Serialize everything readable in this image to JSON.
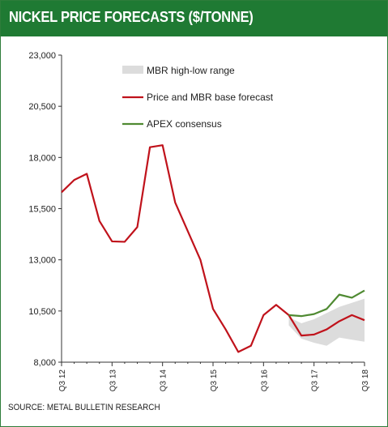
{
  "header": {
    "title": "NICKEL PRICE FORECASTS ($/TONNE)"
  },
  "source": "SOURCE: METAL BULLETIN RESEARCH",
  "colors": {
    "header_bg": "#1f7a33",
    "price": "#c0121b",
    "apex": "#4f8a32",
    "range": "#dcdcdc",
    "axis": "#333333"
  },
  "chart_data": {
    "type": "line",
    "title": "NICKEL PRICE FORECASTS ($/TONNE)",
    "ylim": [
      8000,
      23000
    ],
    "y_ticks": [
      "8,000",
      "10,500",
      "13,000",
      "15,500",
      "18,000",
      "20,500",
      "23,000"
    ],
    "x_ticks": [
      "Q3 12",
      "Q3 13",
      "Q3 14",
      "Q3 15",
      "Q3 16",
      "Q3 17",
      "Q3 18"
    ],
    "grid": false,
    "legend_position": "top-center",
    "legend": [
      "MBR high-low range",
      "Price and MBR base forecast",
      "APEX consensus"
    ],
    "series": [
      {
        "name": "Price and MBR base forecast",
        "x": [
          "Q3 12",
          "Q4 12",
          "Q1 13",
          "Q2 13",
          "Q3 13",
          "Q4 13",
          "Q1 14",
          "Q2 14",
          "Q3 14",
          "Q4 14",
          "Q1 15",
          "Q2 15",
          "Q3 15",
          "Q4 15",
          "Q1 16",
          "Q2 16",
          "Q3 16",
          "Q4 16",
          "Q1 17",
          "Q2 17",
          "Q3 17",
          "Q4 17",
          "Q1 18",
          "Q2 18",
          "Q3 18"
        ],
        "values": [
          16300,
          16900,
          17200,
          14900,
          13900,
          13880,
          14600,
          18500,
          18600,
          15800,
          14400,
          13000,
          10600,
          9600,
          8500,
          8800,
          10300,
          10800,
          10300,
          9300,
          9350,
          9600,
          10000,
          10300,
          10050
        ]
      },
      {
        "name": "APEX consensus",
        "x": [
          "Q1 17",
          "Q2 17",
          "Q3 17",
          "Q4 17",
          "Q1 18",
          "Q2 18",
          "Q3 18"
        ],
        "values": [
          10300,
          10250,
          10350,
          10600,
          11300,
          11150,
          11500
        ]
      },
      {
        "name": "MBR high-low range",
        "x": [
          "Q1 17",
          "Q2 17",
          "Q3 17",
          "Q4 17",
          "Q1 18",
          "Q2 18",
          "Q3 18"
        ],
        "high": [
          10200,
          9900,
          10100,
          10400,
          10700,
          10900,
          11100
        ],
        "low": [
          9800,
          9150,
          8950,
          8800,
          9200,
          9100,
          9000
        ]
      }
    ]
  }
}
